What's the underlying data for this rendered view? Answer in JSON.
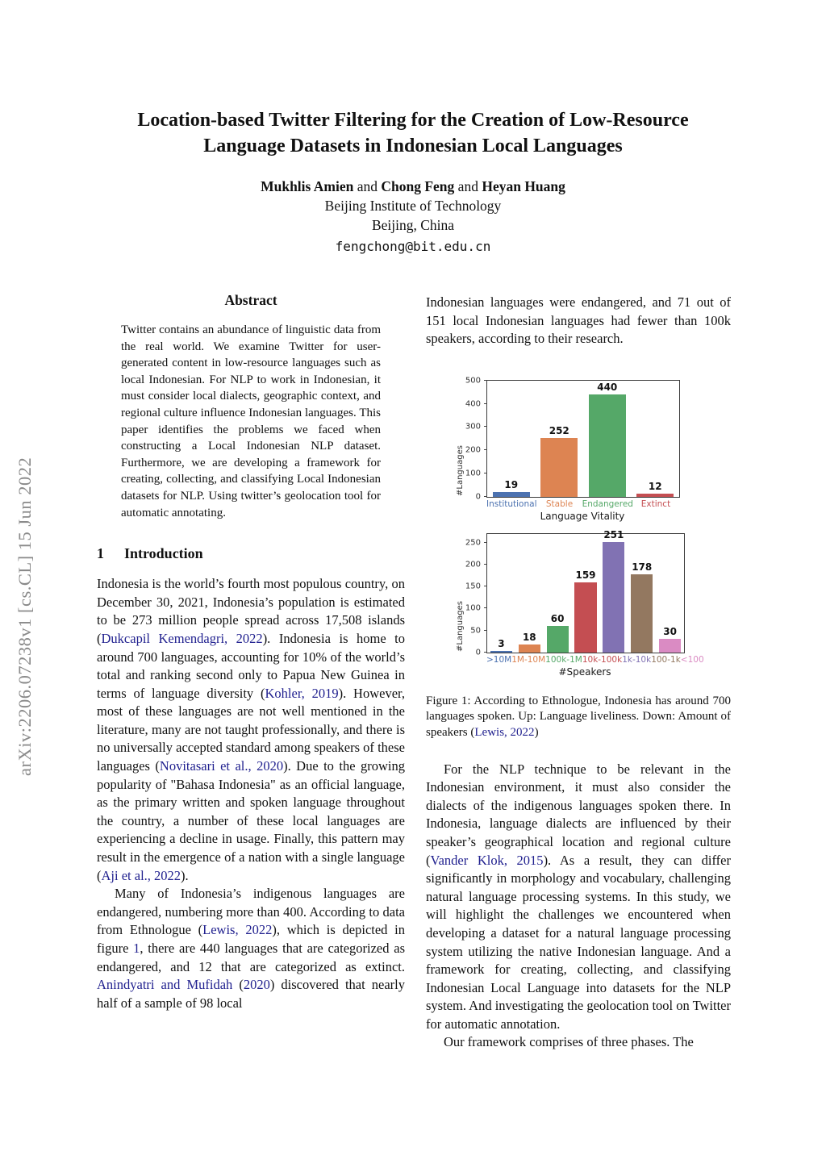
{
  "colors": {
    "link": "#21218F",
    "sidebar_text": "#8A8A8A"
  },
  "page": {
    "arxiv_label": "arXiv:2206.07238v1  [cs.CL]  15 Jun 2022",
    "title_line1": "Location-based Twitter Filtering for the Creation of Low-Resource",
    "title_line2": "Language Datasets in Indonesian Local Languages",
    "authors": [
      {
        "t": "Mukhlis Amien",
        "bold": true
      },
      {
        "t": "  and  "
      },
      {
        "t": "Chong Feng",
        "bold": true
      },
      {
        "t": "  and  "
      },
      {
        "t": "Heyan Huang",
        "bold": true
      }
    ],
    "affiliation": "Beijing Institute of Technology",
    "location": "Beijing, China",
    "email": "fengchong@bit.edu.cn"
  },
  "abstract": {
    "heading": "Abstract",
    "text": "Twitter contains an abundance of linguistic data from the real world. We examine Twitter for user-generated content in low-resource languages such as local Indonesian. For NLP to work in Indonesian, it must consider local dialects, geographic context, and regional culture influence Indonesian languages. This paper identifies the problems we faced when constructing a Local Indonesian NLP dataset. Furthermore, we are developing a framework for creating, collecting, and classifying Local Indonesian datasets for NLP. Using twitter’s geolocation tool for automatic annotating."
  },
  "intro": {
    "number": "1",
    "heading": "Introduction",
    "para1": [
      {
        "t": "Indonesia is the world’s fourth most populous country, on December 30, 2021, Indonesia’s population is estimated to be 273 million people spread across 17,508 islands ("
      },
      {
        "t": "Dukcapil Kemendagri, 2022",
        "link": true
      },
      {
        "t": "). Indonesia is home to around 700 languages, accounting for 10% of the world’s total and ranking second only to Papua New Guinea in terms of language diversity ("
      },
      {
        "t": "Kohler, 2019",
        "link": true
      },
      {
        "t": "). However, most of these languages are not well mentioned in the literature, many are not taught professionally, and there is no universally accepted standard among speakers of these languages ("
      },
      {
        "t": "Novitasari et al., 2020",
        "link": true
      },
      {
        "t": "). Due to the growing popularity of \"Bahasa Indonesia\" as an official language, as the primary written and spoken language throughout the country, a number of these local languages are experiencing a decline in usage. Finally, this pattern may result in the emergence of a nation with a single language ("
      },
      {
        "t": "Aji et al., 2022",
        "link": true
      },
      {
        "t": ")."
      }
    ],
    "para2": [
      {
        "t": "Many of Indonesia’s indigenous languages are endangered, numbering more than 400. According to data from Ethnologue ("
      },
      {
        "t": "Lewis, 2022",
        "link": true
      },
      {
        "t": "), which is depicted in figure "
      },
      {
        "t": "1",
        "link": true
      },
      {
        "t": ", there are 440 languages that are categorized as endangered, and 12 that are categorized as extinct. "
      },
      {
        "t": "Anindyatri and Mufidah",
        "link": true
      },
      {
        "t": " ("
      },
      {
        "t": "2020",
        "link": true
      },
      {
        "t": ") discovered that nearly half of a sample of 98 local"
      }
    ]
  },
  "right": {
    "para_cont": "Indonesian languages were endangered, and 71 out of 151 local Indonesian languages had fewer than 100k speakers, according to their research.",
    "para1": [
      {
        "t": "For the NLP technique to be relevant in the Indonesian environment, it must also consider the dialects of the indigenous languages spoken there. In Indonesia, language dialects are influenced by their speaker’s geographical location and regional culture ("
      },
      {
        "t": "Vander Klok, 2015",
        "link": true
      },
      {
        "t": "). As a result, they can differ significantly in morphology and vocabulary, challenging natural language processing systems. In this study, we will highlight the challenges we encountered when developing a dataset for a natural language processing system utilizing the native Indonesian language. And a framework for creating, collecting, and classifying Indonesian Local Language into datasets for the NLP system. And investigating the geolocation tool on Twitter for automatic annotation."
      }
    ],
    "para2": "Our framework comprises of three phases. The"
  },
  "figure": {
    "caption": [
      {
        "t": "Figure 1:  According to Ethnologue, Indonesia has around 700 languages spoken.  Up: Language liveliness. Down: Amount of speakers ("
      },
      {
        "t": "Lewis, 2022",
        "link": true
      },
      {
        "t": ")"
      }
    ]
  },
  "chart_data": [
    {
      "type": "bar",
      "title": "",
      "categories": [
        "Institutional",
        "Stable",
        "Endangered",
        "Extinct"
      ],
      "values": [
        19,
        252,
        440,
        12
      ],
      "colors": [
        "#4C72B0",
        "#DD8452",
        "#55A868",
        "#C44E52"
      ],
      "xlabel": "Language Vitality",
      "ylabel": "#Languages",
      "ylim": [
        0,
        500
      ],
      "yticks": [
        0,
        100,
        200,
        300,
        400,
        500
      ],
      "ymax": 500,
      "grid": false,
      "legend": "none"
    },
    {
      "type": "bar",
      "title": "",
      "categories": [
        ">10M",
        "1M-10M",
        "100k-1M",
        "10k-100k",
        "1k-10k",
        "100-1k",
        "<100"
      ],
      "values": [
        3,
        18,
        60,
        159,
        251,
        178,
        30
      ],
      "colors": [
        "#4C72B0",
        "#DD8452",
        "#55A868",
        "#C44E52",
        "#8172B3",
        "#937860",
        "#DA8BC3"
      ],
      "xlabel": "#Speakers",
      "ylabel": "#Languages",
      "ylim": [
        0,
        270
      ],
      "yticks": [
        0,
        50,
        100,
        150,
        200,
        250
      ],
      "ymax": 270,
      "grid": false,
      "legend": "none"
    }
  ]
}
